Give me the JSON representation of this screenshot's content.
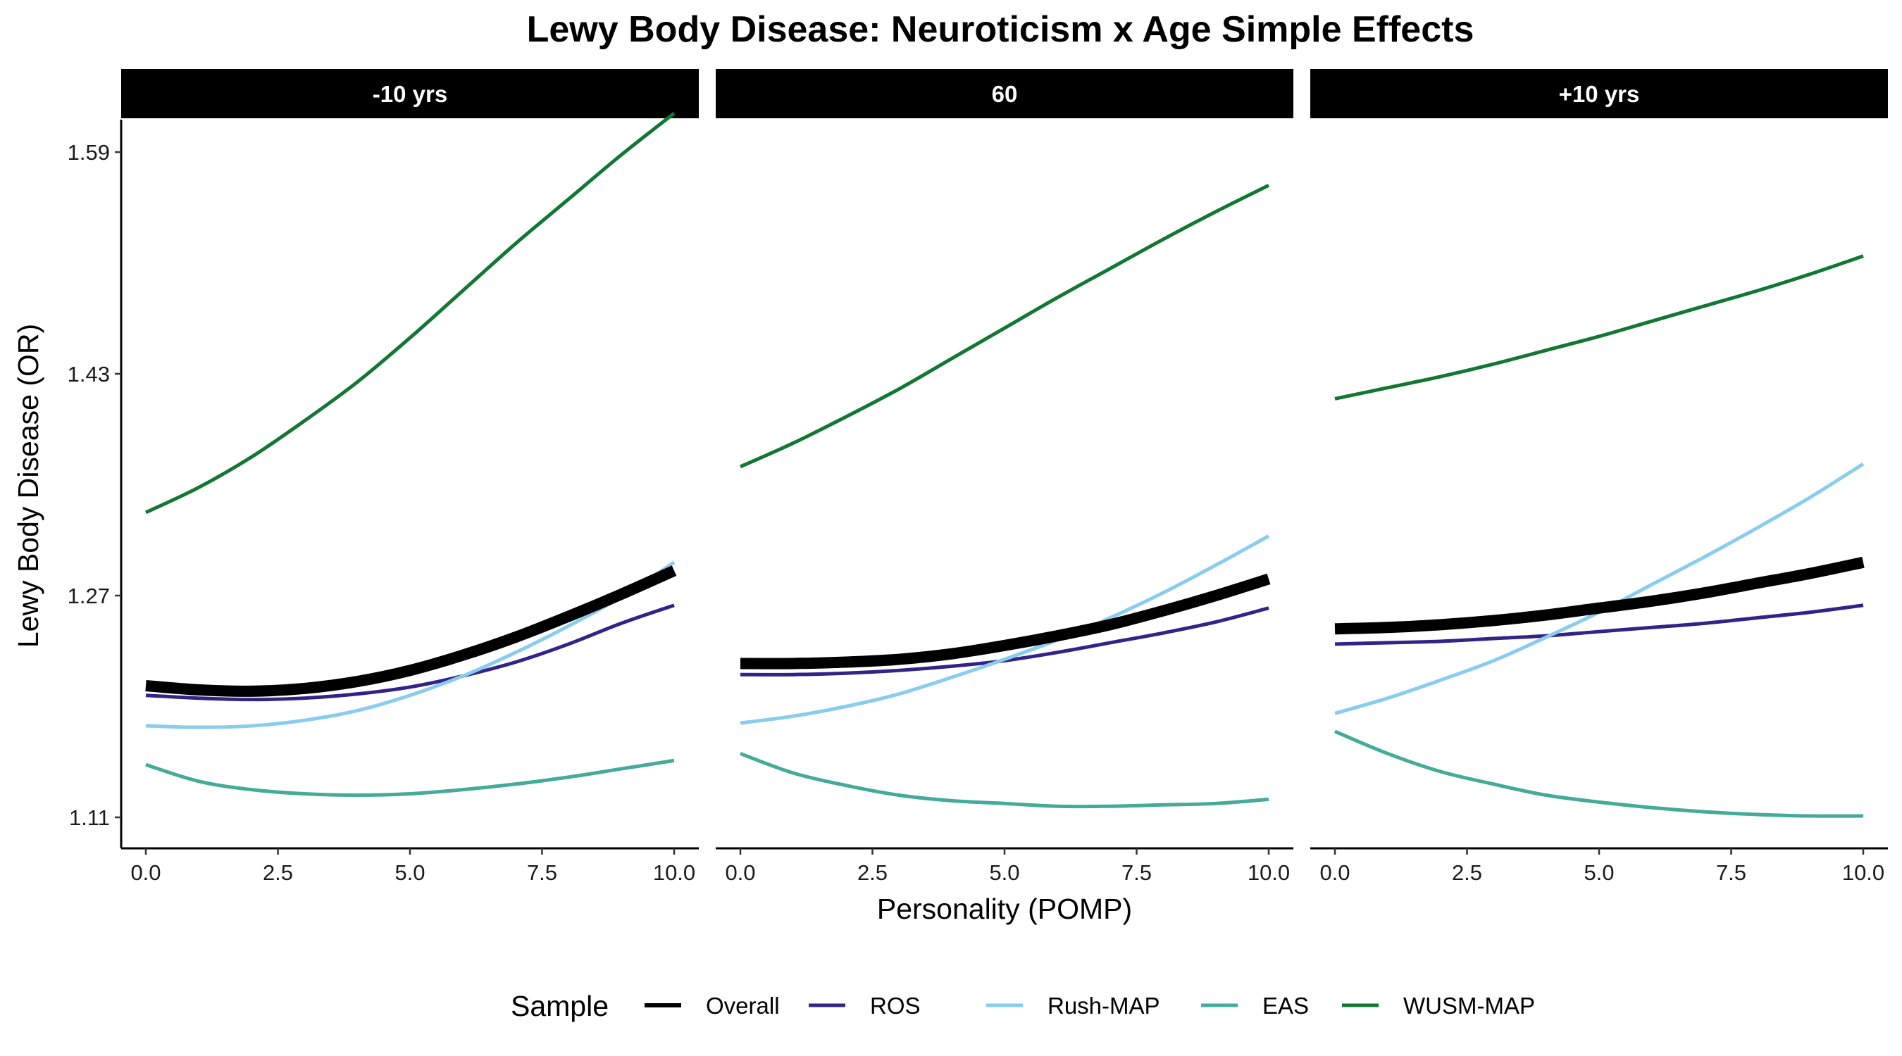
{
  "chart_data": {
    "type": "line",
    "title": "Lewy Body Disease: Neuroticism x Age Simple Effects",
    "xlabel": "Personality (POMP)",
    "ylabel": "Lewy Body Disease (OR)",
    "xlim": [
      0,
      10
    ],
    "ylim": [
      1.11,
      1.59
    ],
    "x_ticks": [
      "0.0",
      "2.5",
      "5.0",
      "7.5",
      "10.0"
    ],
    "y_ticks": [
      "1.11",
      "1.27",
      "1.43",
      "1.59"
    ],
    "x_tick_values": [
      0,
      2.5,
      5,
      7.5,
      10
    ],
    "y_tick_values": [
      1.11,
      1.27,
      1.43,
      1.59
    ],
    "grid": false,
    "legend": {
      "title": "Sample",
      "position": "bottom"
    },
    "x": [
      0,
      1,
      2,
      3,
      4,
      5,
      6,
      7,
      8,
      9,
      10
    ],
    "series_styles": [
      {
        "name": "Overall",
        "color": "#000000",
        "heavy": true
      },
      {
        "name": "ROS",
        "color": "#332288",
        "heavy": false
      },
      {
        "name": "Rush-MAP",
        "color": "#88ccee",
        "heavy": false
      },
      {
        "name": "EAS",
        "color": "#44aa99",
        "heavy": false
      },
      {
        "name": "WUSM-MAP",
        "color": "#117733",
        "heavy": false
      }
    ],
    "panels": [
      {
        "label": "-10 yrs",
        "series": [
          {
            "name": "Overall",
            "values": [
              1.205,
              1.202,
              1.201,
              1.203,
              1.208,
              1.216,
              1.227,
              1.24,
              1.255,
              1.271,
              1.288
            ]
          },
          {
            "name": "ROS",
            "values": [
              1.198,
              1.196,
              1.195,
              1.196,
              1.199,
              1.204,
              1.212,
              1.222,
              1.235,
              1.25,
              1.263
            ]
          },
          {
            "name": "Rush-MAP",
            "values": [
              1.176,
              1.175,
              1.176,
              1.18,
              1.187,
              1.198,
              1.212,
              1.229,
              1.248,
              1.269,
              1.294
            ]
          },
          {
            "name": "EAS",
            "values": [
              1.148,
              1.136,
              1.13,
              1.127,
              1.126,
              1.127,
              1.13,
              1.134,
              1.139,
              1.145,
              1.151
            ]
          },
          {
            "name": "WUSM-MAP",
            "values": [
              1.33,
              1.348,
              1.37,
              1.396,
              1.424,
              1.456,
              1.49,
              1.524,
              1.556,
              1.588,
              1.618
            ]
          }
        ]
      },
      {
        "label": "60",
        "series": [
          {
            "name": "Overall",
            "values": [
              1.221,
              1.221,
              1.222,
              1.224,
              1.228,
              1.234,
              1.241,
              1.249,
              1.259,
              1.27,
              1.282
            ]
          },
          {
            "name": "ROS",
            "values": [
              1.213,
              1.213,
              1.214,
              1.216,
              1.219,
              1.223,
              1.229,
              1.236,
              1.243,
              1.251,
              1.261
            ]
          },
          {
            "name": "Rush-MAP",
            "values": [
              1.178,
              1.183,
              1.19,
              1.199,
              1.211,
              1.224,
              1.238,
              1.254,
              1.272,
              1.292,
              1.313
            ]
          },
          {
            "name": "EAS",
            "values": [
              1.156,
              1.142,
              1.133,
              1.126,
              1.122,
              1.12,
              1.118,
              1.118,
              1.119,
              1.12,
              1.123
            ]
          },
          {
            "name": "WUSM-MAP",
            "values": [
              1.363,
              1.38,
              1.399,
              1.419,
              1.441,
              1.463,
              1.485,
              1.506,
              1.527,
              1.547,
              1.566
            ]
          }
        ]
      },
      {
        "label": "+10 yrs",
        "series": [
          {
            "name": "Overall",
            "values": [
              1.246,
              1.247,
              1.249,
              1.252,
              1.256,
              1.261,
              1.266,
              1.272,
              1.279,
              1.286,
              1.294
            ]
          },
          {
            "name": "ROS",
            "values": [
              1.235,
              1.236,
              1.237,
              1.239,
              1.241,
              1.244,
              1.247,
              1.25,
              1.254,
              1.258,
              1.263
            ]
          },
          {
            "name": "Rush-MAP",
            "values": [
              1.185,
              1.196,
              1.209,
              1.223,
              1.24,
              1.258,
              1.278,
              1.298,
              1.319,
              1.341,
              1.365
            ]
          },
          {
            "name": "EAS",
            "values": [
              1.172,
              1.156,
              1.143,
              1.134,
              1.126,
              1.121,
              1.117,
              1.114,
              1.112,
              1.111,
              1.111
            ]
          },
          {
            "name": "WUSM-MAP",
            "values": [
              1.412,
              1.42,
              1.428,
              1.437,
              1.447,
              1.457,
              1.468,
              1.479,
              1.49,
              1.502,
              1.515
            ]
          }
        ]
      }
    ]
  }
}
